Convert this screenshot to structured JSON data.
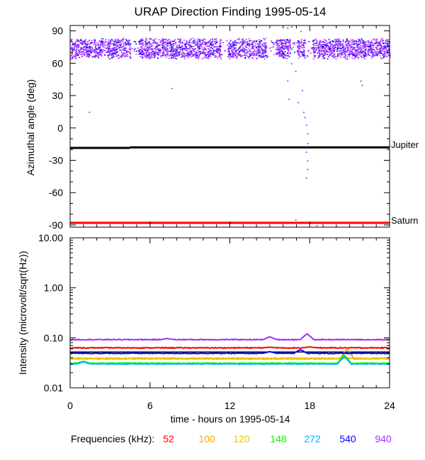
{
  "chart_data": [
    {
      "type": "scatter",
      "title": "URAP Direction Finding  1995-05-14",
      "ylabel": "Azimuthal angle (deg)",
      "xlabel": "",
      "xlim": [
        0,
        24
      ],
      "ylim": [
        -92,
        95
      ],
      "x_ticks": [
        "0",
        "6",
        "12",
        "18",
        "24"
      ],
      "y_ticks": [
        "90",
        "60",
        "30",
        "0",
        "-30",
        "-60",
        "-90"
      ],
      "y_tick_values": [
        90,
        60,
        30,
        0,
        -30,
        -60,
        -90
      ],
      "band": {
        "y_low": 66,
        "y_high": 82,
        "gaps": [
          [
            4.5,
            5.1
          ],
          [
            11.3,
            11.8
          ],
          [
            14.7,
            15.4
          ],
          [
            16.5,
            17.0
          ],
          [
            17.6,
            18.2
          ]
        ]
      },
      "reference_lines": [
        {
          "name": "Jupiter",
          "y": -18,
          "color": "#000000",
          "segments": [
            [
              0,
              4.5,
              -18.5
            ],
            [
              4.5,
              24,
              -18
            ]
          ]
        },
        {
          "name": "Saturn",
          "y": -88,
          "color": "#ff0000",
          "segments": [
            [
              0,
              24,
              -88
            ]
          ]
        }
      ],
      "scatter_points": [
        {
          "x": 1.4,
          "y": 15
        },
        {
          "x": 7.6,
          "y": 37
        },
        {
          "x": 16.3,
          "y": 44
        },
        {
          "x": 16.4,
          "y": 27
        },
        {
          "x": 16.6,
          "y": 60
        },
        {
          "x": 16.9,
          "y": 53
        },
        {
          "x": 17.1,
          "y": 24
        },
        {
          "x": 17.4,
          "y": 35
        },
        {
          "x": 17.5,
          "y": 15
        },
        {
          "x": 17.6,
          "y": 10
        },
        {
          "x": 17.7,
          "y": 3
        },
        {
          "x": 17.8,
          "y": -5
        },
        {
          "x": 17.8,
          "y": -14
        },
        {
          "x": 17.7,
          "y": -22
        },
        {
          "x": 17.8,
          "y": -30
        },
        {
          "x": 17.8,
          "y": -38
        },
        {
          "x": 17.7,
          "y": -46
        },
        {
          "x": 21.8,
          "y": 44
        },
        {
          "x": 21.9,
          "y": 40
        },
        {
          "x": 16.9,
          "y": -85
        },
        {
          "x": 18.5,
          "y": -90
        },
        {
          "x": 16.3,
          "y": 93
        },
        {
          "x": 16.6,
          "y": 94
        },
        {
          "x": 17.3,
          "y": 90
        }
      ]
    },
    {
      "type": "line",
      "ylabel": "Intensity (microvolt/sqrt(Hz))",
      "xlabel": "time - hours on 1995-05-14",
      "xlim": [
        0,
        24
      ],
      "ylim": [
        0.01,
        10
      ],
      "yscale": "log",
      "x_ticks": [
        "0",
        "6",
        "12",
        "18",
        "24"
      ],
      "y_ticks": [
        "10.00",
        "1.00",
        "0.10",
        "0.01"
      ],
      "y_tick_values": [
        10,
        1,
        0.1,
        0.01
      ],
      "series": [
        {
          "name": "52",
          "color": "#ff0000",
          "base": 0.063,
          "bumps": [
            [
              15,
              0.065
            ],
            [
              18,
              0.066
            ]
          ]
        },
        {
          "name": "100",
          "color": "#ffa500",
          "base": 0.038,
          "bumps": [
            [
              20.8,
              0.06
            ]
          ]
        },
        {
          "name": "120",
          "color": "#e6c800",
          "base": 0.039,
          "bumps": []
        },
        {
          "name": "148",
          "color": "#00ff00",
          "base": 0.031,
          "bumps": [
            [
              1.0,
              0.034
            ],
            [
              20.6,
              0.045
            ]
          ]
        },
        {
          "name": "272",
          "color": "#00b4ff",
          "base": 0.03,
          "bumps": [
            [
              1.0,
              0.033
            ],
            [
              20.6,
              0.042
            ]
          ]
        },
        {
          "name": "540",
          "color": "#0000ff",
          "base": 0.049,
          "bumps": [
            [
              15,
              0.053
            ],
            [
              17.3,
              0.058
            ]
          ]
        },
        {
          "name": "940",
          "color": "#a030ff",
          "base": 0.092,
          "bumps": [
            [
              7.3,
              0.097
            ],
            [
              15,
              0.105
            ],
            [
              17.8,
              0.12
            ]
          ]
        }
      ],
      "reference_value": 0.1
    }
  ],
  "legend": {
    "label": "Frequencies (kHz):",
    "items": [
      {
        "name": "52",
        "color": "#ff0000"
      },
      {
        "name": "100",
        "color": "#ffa500"
      },
      {
        "name": "120",
        "color": "#e6c800"
      },
      {
        "name": "148",
        "color": "#00ff00"
      },
      {
        "name": "272",
        "color": "#00b4ff"
      },
      {
        "name": "540",
        "color": "#0000ff"
      },
      {
        "name": "940",
        "color": "#a030ff"
      }
    ]
  },
  "band_colors": [
    "#a030ff",
    "#a030ff",
    "#a030ff",
    "#0000ff",
    "#a030ff"
  ]
}
